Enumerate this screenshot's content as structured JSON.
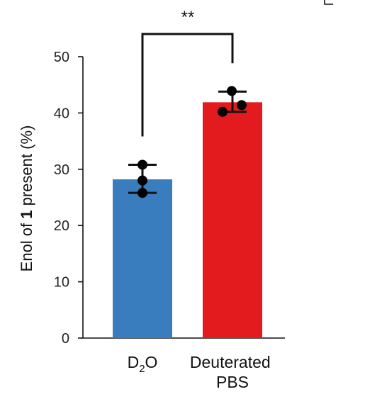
{
  "chart_data": {
    "type": "bar",
    "ylabel": {
      "prefix": "Enol of ",
      "bold": "1",
      "suffix": " present (%)"
    },
    "ylim": [
      0,
      50
    ],
    "yticks": [
      "0",
      "10",
      "20",
      "30",
      "40",
      "50"
    ],
    "categories": [
      {
        "main": "D",
        "sub": "2",
        "tail": "O",
        "line2": ""
      },
      {
        "main": "Deuterated",
        "sub": "",
        "tail": "",
        "line2": "PBS"
      }
    ],
    "values": [
      28.2,
      41.9
    ],
    "error_low": [
      25.8,
      40.2
    ],
    "error_high": [
      30.8,
      43.8
    ],
    "points": [
      [
        25.8,
        28.0,
        30.8
      ],
      [
        40.2,
        41.4,
        43.9
      ]
    ],
    "colors": [
      "#3a7dbf",
      "#e31b1e"
    ],
    "significance": "**",
    "grid": false,
    "legend": "none"
  }
}
